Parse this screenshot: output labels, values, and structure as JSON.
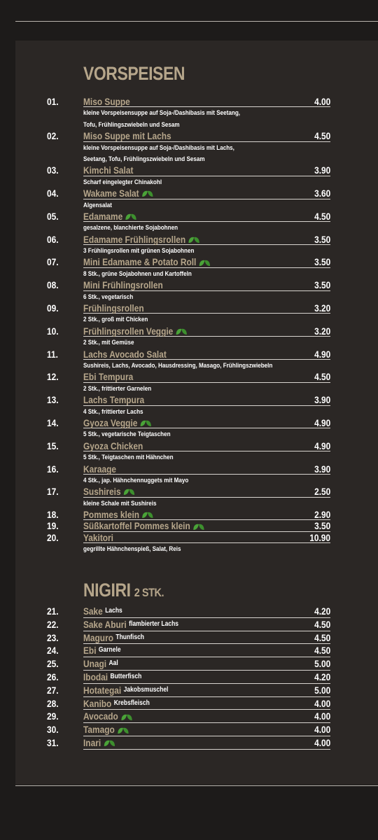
{
  "sections": [
    {
      "title": "VORSPEISEN",
      "items": [
        {
          "number": "01.",
          "name": "Miso Suppe",
          "price": "4.00",
          "description": [
            "kleine Vorspeisensuppe auf Soja-/Dashibasis mit Seetang,",
            "Tofu, Frühlingszwiebeln und Sesam"
          ]
        },
        {
          "number": "02.",
          "name": "Miso Suppe mit Lachs",
          "price": "4.50",
          "description": [
            "kleine Vorspeisensuppe auf Soja-/Dashibasis mit Lachs,",
            "Seetang, Tofu, Frühlingszwiebeln und Sesam"
          ]
        },
        {
          "number": "03.",
          "name": "Kimchi Salat",
          "price": "3.90",
          "description": [
            "Scharf eingelegter Chinakohl"
          ]
        },
        {
          "number": "04.",
          "name": "Wakame Salat",
          "veggie": true,
          "price": "3.60",
          "description": [
            "Algensalat"
          ]
        },
        {
          "number": "05.",
          "name": "Edamame",
          "veggie": true,
          "price": "4.50",
          "description": [
            "gesalzene, blanchierte Sojabohnen"
          ]
        },
        {
          "number": "06.",
          "name": "Edamame Frühlingsrollen",
          "veggie": true,
          "price": "3.50",
          "description": [
            "3 Frühlingsrollen mit grünen Sojabohnen"
          ]
        },
        {
          "number": "07.",
          "name": "Mini Edamame & Potato Roll",
          "veggie": true,
          "price": "3.50",
          "description": [
            "8 Stk., grüne Sojabohnen und Kartoffeln"
          ]
        },
        {
          "number": "08.",
          "name": "Mini Frühlingsrollen",
          "price": "3.50",
          "description": [
            "6 Stk., vegetarisch"
          ]
        },
        {
          "number": "09.",
          "name": "Frühlingsrollen",
          "price": "3.20",
          "description": [
            "2 Stk., groß mit Chicken"
          ]
        },
        {
          "number": "10.",
          "name": "Frühlingsrollen Veggie",
          "veggie": true,
          "price": "3.20",
          "description": [
            "2 Stk., mit Gemüse"
          ]
        },
        {
          "number": "11.",
          "name": "Lachs Avocado Salat",
          "price": "4.90",
          "description": [
            "Sushireis, Lachs, Avocado, Hausdressing, Masago, Frühlingszwiebeln"
          ]
        },
        {
          "number": "12.",
          "name": "Ebi Tempura",
          "price": "4.50",
          "description": [
            "2 Stk., frittierter Garnelen"
          ]
        },
        {
          "number": "13.",
          "name": "Lachs Tempura",
          "price": "3.90",
          "description": [
            "4 Stk., frittierter Lachs"
          ]
        },
        {
          "number": "14.",
          "name": "Gyoza Veggie",
          "veggie": true,
          "price": "4.90",
          "description": [
            "5 Stk., vegetarische Teigtaschen"
          ]
        },
        {
          "number": "15.",
          "name": "Gyoza Chicken",
          "price": "4.90",
          "description": [
            "5 Stk., Teigtaschen mit Hähnchen"
          ]
        },
        {
          "number": "16.",
          "name": "Karaage",
          "price": "3.90",
          "description": [
            "4 Stk., jap. Hähnchennuggets mit Mayo"
          ]
        },
        {
          "number": "17.",
          "name": "Sushireis",
          "veggie": true,
          "price": "2.50",
          "description": [
            "kleine Schale mit Sushireis"
          ]
        },
        {
          "number": "18.",
          "name": "Pommes klein",
          "veggie": true,
          "price": "2.90"
        },
        {
          "number": "19.",
          "name": "Süßkartoffel Pommes klein",
          "veggie": true,
          "price": "3.50"
        },
        {
          "number": "20.",
          "name": "Yakitori",
          "price": "10.90",
          "description": [
            "gegrillte Hähnchenspieß, Salat, Reis"
          ]
        }
      ]
    },
    {
      "title": "NIGIRI",
      "subtitle": "2 STK.",
      "items": [
        {
          "number": "21.",
          "name": "Sake",
          "note": "Lachs",
          "price": "4.20"
        },
        {
          "number": "22.",
          "name": "Sake Aburi",
          "note": "flambierter Lachs",
          "price": "4.50"
        },
        {
          "number": "23.",
          "name": "Maguro",
          "note": "Thunfisch",
          "price": "4.50"
        },
        {
          "number": "24.",
          "name": "Ebi",
          "note": "Garnele",
          "price": "4.50"
        },
        {
          "number": "25.",
          "name": "Unagi",
          "note": "Aal",
          "price": "5.00"
        },
        {
          "number": "26.",
          "name": "Ibodai",
          "note": "Butterfisch",
          "price": "4.20"
        },
        {
          "number": "27.",
          "name": "Hotategai",
          "note": "Jakobsmuschel",
          "price": "5.00"
        },
        {
          "number": "28.",
          "name": "Kanibo",
          "note": "Krebsfleisch",
          "price": "4.00"
        },
        {
          "number": "29.",
          "name": "Avocado",
          "veggie": true,
          "price": "4.00"
        },
        {
          "number": "30.",
          "name": "Tamago",
          "veggie": true,
          "price": "4.00"
        },
        {
          "number": "31.",
          "name": "Inari",
          "veggie": true,
          "price": "4.00"
        }
      ]
    }
  ]
}
